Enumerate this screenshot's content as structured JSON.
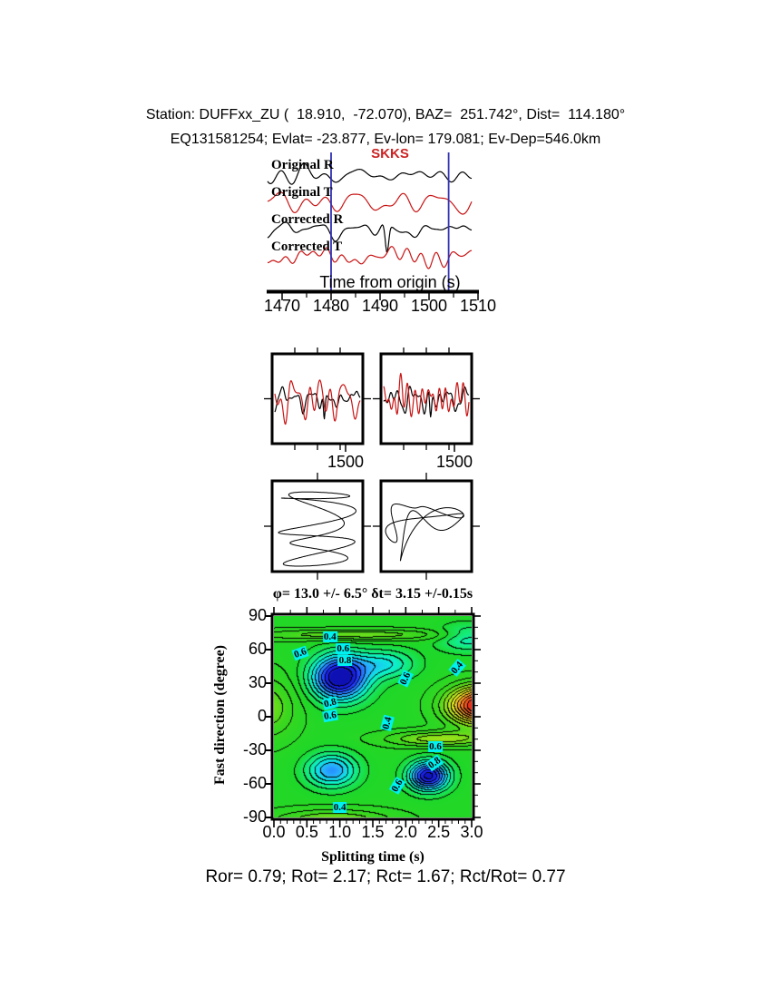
{
  "header": {
    "line1": "Station: DUFFxx_ZU (  18.910,  -72.070), BAZ=  251.742°, Dist=  114.180°",
    "line2": "EQ131581254; Evlat= -23.877, Ev-lon= 179.081; Ev-Dep=546.0km"
  },
  "footer": {
    "text": "Ror= 0.79; Rot= 2.17; Rct= 1.67; Rct/Rot= 0.77"
  },
  "chart_data": [
    {
      "id": "seismograms",
      "type": "line",
      "phase_label": "SKKS",
      "phase_color": "#cc2222",
      "xlabel": "Time from origin (s)",
      "xlim": [
        1467,
        1510
      ],
      "xticks": [
        1470,
        1480,
        1490,
        1500,
        1510
      ],
      "minor_ticks": [
        1475,
        1485,
        1495,
        1505
      ],
      "traces": [
        {
          "label": "Original R",
          "color": "#000000",
          "seed": 11
        },
        {
          "label": "Original T",
          "color": "#c81414",
          "seed": 22
        },
        {
          "label": "Corrected R",
          "color": "#000000",
          "seed": 33,
          "spike_t": 0.585,
          "spike_amp": -2.6
        },
        {
          "label": "Corrected T",
          "color": "#c81414",
          "seed": 44
        }
      ],
      "window": {
        "start_s": 1480,
        "end_s": 1504,
        "color": "#3232b4"
      }
    },
    {
      "id": "window-comparison",
      "type": "line",
      "panels": [
        {
          "tick_label": "1500",
          "series": [
            {
              "color": "#c81414",
              "seed": 55,
              "amp": 1.0
            },
            {
              "color": "#000000",
              "seed": 33,
              "amp": 0.6,
              "spike_t": 0.58,
              "spike_amp": -1.9
            }
          ]
        },
        {
          "tick_label": "1500",
          "series": [
            {
              "color": "#c81414",
              "seed": 66,
              "amp": 1.0
            },
            {
              "color": "#000000",
              "seed": 77,
              "amp": 0.6,
              "spike_t": 0.55,
              "spike_amp": -1.6
            }
          ]
        }
      ]
    },
    {
      "id": "particle-motion",
      "type": "line",
      "panels": [
        {
          "rotation_deg": 0,
          "seed": 5,
          "tail": false,
          "vbias": true
        },
        {
          "rotation_deg": 28,
          "seed": 9,
          "tail": true,
          "vbias": false
        }
      ]
    },
    {
      "id": "misfit-contour",
      "type": "heatmap",
      "title": "φ= 13.0 +/- 6.5° δt= 3.15 +/-0.15s",
      "xlabel": "Splitting time (s)",
      "ylabel": "Fast direction (degree)",
      "xlim": [
        0,
        3
      ],
      "ylim": [
        -90,
        90
      ],
      "xticks": [
        "0.0",
        "0.5",
        "1.0",
        "1.5",
        "2.0",
        "2.5",
        "3.0"
      ],
      "yticks": [
        90,
        60,
        30,
        0,
        -30,
        -60,
        -90
      ],
      "best_fit": {
        "phi_deg": 13.0,
        "phi_err_deg": 6.5,
        "dt_s": 3.15,
        "dt_err_s": 0.15
      },
      "field": {
        "base": 0.48,
        "level_step": 0.05,
        "blobs": [
          [
            1.0,
            35,
            -0.5,
            0.42,
            20
          ],
          [
            1.7,
            47,
            -0.18,
            0.45,
            13
          ],
          [
            2.35,
            -53,
            -0.45,
            0.3,
            13
          ],
          [
            0.88,
            -48,
            -0.28,
            0.38,
            15
          ],
          [
            3.15,
            10,
            0.62,
            0.5,
            17
          ],
          [
            1.2,
            73,
            0.16,
            1.5,
            5
          ],
          [
            0.9,
            -93,
            0.18,
            0.9,
            10
          ],
          [
            -0.1,
            8,
            0.16,
            0.45,
            28
          ],
          [
            2.95,
            70,
            -0.16,
            0.45,
            12
          ],
          [
            2.5,
            -20,
            0.2,
            0.8,
            7
          ]
        ]
      },
      "palette": [
        [
          0.0,
          10,
          10,
          160
        ],
        [
          0.1,
          30,
          40,
          255
        ],
        [
          0.22,
          40,
          170,
          255
        ],
        [
          0.3,
          10,
          240,
          220
        ],
        [
          0.38,
          20,
          235,
          120
        ],
        [
          0.46,
          30,
          215,
          40
        ],
        [
          0.58,
          60,
          215,
          30
        ],
        [
          0.68,
          150,
          225,
          25
        ],
        [
          0.78,
          235,
          235,
          35
        ],
        [
          0.88,
          250,
          150,
          40
        ],
        [
          1.0,
          240,
          60,
          25
        ],
        [
          1.06,
          230,
          30,
          20
        ]
      ],
      "label_bg": "#00f0f0",
      "contour_labels": [
        {
          "text": "0.4",
          "x": 0.85,
          "y": 71,
          "rot": 0
        },
        {
          "text": "0.6",
          "x": 0.4,
          "y": 57,
          "rot": -20
        },
        {
          "text": "0.6",
          "x": 1.05,
          "y": 61,
          "rot": 0
        },
        {
          "text": "0.8",
          "x": 1.08,
          "y": 50,
          "rot": 0
        },
        {
          "text": "0.6",
          "x": 2.0,
          "y": 34,
          "rot": -65
        },
        {
          "text": "0.4",
          "x": 2.78,
          "y": 44,
          "rot": -50
        },
        {
          "text": "0.8",
          "x": 0.85,
          "y": 12,
          "rot": -15
        },
        {
          "text": "0.6",
          "x": 0.86,
          "y": 1,
          "rot": -10
        },
        {
          "text": "0.4",
          "x": 1.72,
          "y": -6,
          "rot": -75
        },
        {
          "text": "0.6",
          "x": 2.45,
          "y": -27,
          "rot": 0
        },
        {
          "text": "0.8",
          "x": 2.43,
          "y": -41,
          "rot": -35
        },
        {
          "text": "0.6",
          "x": 1.87,
          "y": -62,
          "rot": -60
        },
        {
          "text": "0.4",
          "x": 1.0,
          "y": -81,
          "rot": 0
        }
      ]
    }
  ]
}
